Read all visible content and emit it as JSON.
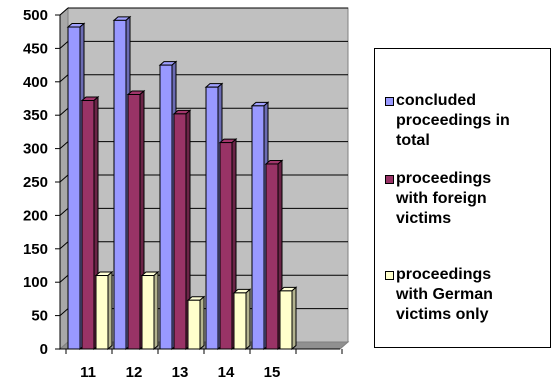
{
  "chart_data": {
    "type": "bar",
    "title": "",
    "xlabel": "",
    "ylabel": "",
    "categories": [
      "11",
      "12",
      "13",
      "14",
      "15"
    ],
    "ylim": [
      0,
      500
    ],
    "yticks": [
      "0",
      "50",
      "100",
      "150",
      "200",
      "250",
      "300",
      "350",
      "400",
      "450",
      "500"
    ],
    "grid": true,
    "legend_position": "right",
    "style": "3d-clustered-column",
    "plot_background": "#c0c0c0",
    "series": [
      {
        "name": "concluded proceedings in total",
        "color": "#9999ff",
        "values": [
          482,
          492,
          425,
          392,
          364
        ]
      },
      {
        "name": "proceedings with foreign victims",
        "color": "#993366",
        "values": [
          372,
          381,
          352,
          309,
          277
        ]
      },
      {
        "name": "proceedings with German victims only",
        "color": "#ffffcc",
        "values": [
          110,
          110,
          73,
          84,
          87
        ]
      }
    ]
  },
  "legend": {
    "items": [
      {
        "line1": "concluded",
        "line2": "proceedings in",
        "line3": "total"
      },
      {
        "line1": "proceedings",
        "line2": "with foreign",
        "line3": "victims"
      },
      {
        "line1": "proceedings",
        "line2": "with German",
        "line3": "victims only"
      }
    ]
  }
}
